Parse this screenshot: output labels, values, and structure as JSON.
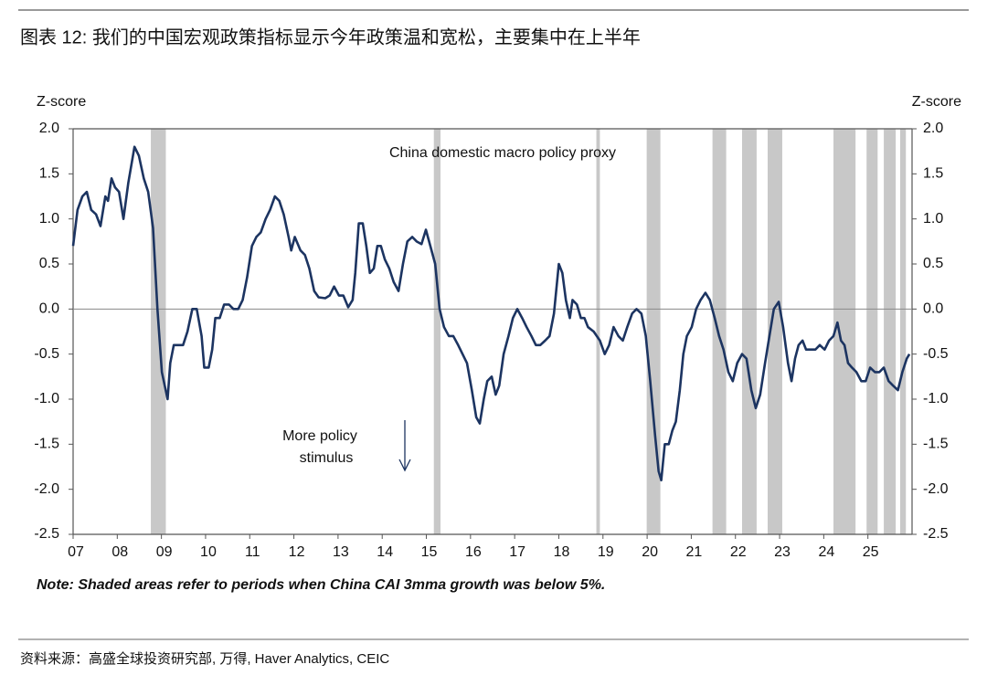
{
  "chart_data": {
    "type": "line",
    "title": "图表 12: 我们的中国宏观政策指标显示今年政策温和宽松，主要集中在上半年",
    "y_label": "Z-score",
    "y2_label": "Z-score",
    "annotation": "China domestic macro policy proxy",
    "annotation_stimulus": [
      "More policy",
      "stimulus"
    ],
    "note": "Note: Shaded areas refer to periods when China CAI 3mma growth was below 5%.",
    "source": "资料来源：高盛全球投资研究部, 万得, Haver Analytics, CEIC",
    "xlim": [
      7,
      26
    ],
    "xticks": [
      {
        "value": 7,
        "label": "07"
      },
      {
        "value": 8,
        "label": "08"
      },
      {
        "value": 9,
        "label": "09"
      },
      10,
      11,
      12,
      13,
      14,
      15,
      16,
      17,
      18,
      19,
      20,
      21,
      22,
      23,
      24,
      25
    ],
    "ylim": [
      -2.5,
      2.0
    ],
    "yticks": [
      {
        "value": -2.5,
        "label": "-2.5"
      },
      {
        "value": -2,
        "label": "-2.0"
      },
      -1.5,
      {
        "value": -1,
        "label": "-1.0"
      },
      -0.5,
      {
        "value": 0,
        "label": "0.0"
      },
      0.5,
      {
        "value": 1,
        "label": "1.0"
      },
      1.5,
      {
        "value": 2,
        "label": "2.0"
      }
    ],
    "y2lim": [
      -2.5,
      2.0
    ],
    "y2ticks": [
      {
        "value": -2.5,
        "label": "-2.5"
      },
      {
        "value": -2,
        "label": "-2.0"
      },
      -1.5,
      {
        "value": -1,
        "label": "-1.0"
      },
      -0.5,
      {
        "value": 0,
        "label": "0.0"
      },
      0.5,
      {
        "value": 1,
        "label": "1.0"
      },
      1.5,
      {
        "value": 2,
        "label": "2.0"
      }
    ],
    "shaded_color": "#c8c8c8",
    "shaded_periods": [
      [
        8.76,
        9.1
      ],
      [
        15.17,
        15.32
      ],
      [
        18.85,
        18.93
      ],
      [
        19.99,
        20.3
      ],
      [
        21.48,
        21.79
      ],
      [
        22.15,
        22.48
      ],
      [
        22.73,
        23.06
      ],
      [
        24.22,
        24.72
      ],
      [
        24.97,
        25.22
      ],
      [
        25.36,
        25.63
      ],
      [
        25.73,
        25.86
      ]
    ],
    "x": [
      7.0,
      7.1,
      7.21,
      7.31,
      7.41,
      7.52,
      7.62,
      7.73,
      7.79,
      7.87,
      7.95,
      8.04,
      8.14,
      8.25,
      8.39,
      8.49,
      8.6,
      8.7,
      8.81,
      8.91,
      9.01,
      9.14,
      9.2,
      9.28,
      9.39,
      9.49,
      9.59,
      9.7,
      9.8,
      9.91,
      9.97,
      10.07,
      10.15,
      10.22,
      10.32,
      10.42,
      10.53,
      10.63,
      10.74,
      10.84,
      10.94,
      11.05,
      11.15,
      11.25,
      11.36,
      11.46,
      11.57,
      11.67,
      11.77,
      11.88,
      11.94,
      12.02,
      12.15,
      12.25,
      12.35,
      12.46,
      12.56,
      12.71,
      12.81,
      12.91,
      13.02,
      13.12,
      13.23,
      13.33,
      13.39,
      13.47,
      13.56,
      13.64,
      13.72,
      13.81,
      13.89,
      13.97,
      14.06,
      14.16,
      14.26,
      14.37,
      14.47,
      14.57,
      14.68,
      14.78,
      14.89,
      14.99,
      15.09,
      15.2,
      15.3,
      15.4,
      15.51,
      15.61,
      15.72,
      15.82,
      15.92,
      16.03,
      16.13,
      16.21,
      16.3,
      16.38,
      16.48,
      16.57,
      16.65,
      16.75,
      16.86,
      16.96,
      17.06,
      17.17,
      17.27,
      17.38,
      17.48,
      17.58,
      17.69,
      17.79,
      17.89,
      18.0,
      18.08,
      18.16,
      18.25,
      18.31,
      18.41,
      18.5,
      18.58,
      18.66,
      18.79,
      18.93,
      19.04,
      19.14,
      19.24,
      19.35,
      19.45,
      19.55,
      19.66,
      19.76,
      19.87,
      19.97,
      20.07,
      20.18,
      20.26,
      20.32,
      20.4,
      20.49,
      20.57,
      20.65,
      20.74,
      20.82,
      20.9,
      21.01,
      21.11,
      21.21,
      21.32,
      21.42,
      21.53,
      21.63,
      21.73,
      21.84,
      21.94,
      22.04,
      22.15,
      22.25,
      22.36,
      22.46,
      22.56,
      22.67,
      22.77,
      22.87,
      22.98,
      23.08,
      23.19,
      23.27,
      23.35,
      23.43,
      23.52,
      23.6,
      23.7,
      23.81,
      23.91,
      24.02,
      24.12,
      24.22,
      24.31,
      24.39,
      24.47,
      24.55,
      24.64,
      24.74,
      24.85,
      24.95,
      25.05,
      25.16,
      25.26,
      25.36,
      25.47,
      25.57,
      25.68,
      25.78,
      25.88,
      25.94
    ],
    "series": [
      {
        "name": "China domestic macro policy proxy",
        "color": "#1c3461",
        "values": [
          0.7,
          1.1,
          1.25,
          1.3,
          1.1,
          1.05,
          0.92,
          1.25,
          1.2,
          1.45,
          1.35,
          1.3,
          1.0,
          1.4,
          1.8,
          1.7,
          1.45,
          1.3,
          0.9,
          0,
          -0.7,
          -1.0,
          -0.6,
          -0.4,
          -0.4,
          -0.4,
          -0.25,
          0,
          0,
          -0.3,
          -0.65,
          -0.65,
          -0.45,
          -0.1,
          -0.1,
          0.05,
          0.05,
          0,
          0,
          0.1,
          0.35,
          0.7,
          0.8,
          0.85,
          1.0,
          1.1,
          1.25,
          1.2,
          1.05,
          0.8,
          0.65,
          0.8,
          0.65,
          0.6,
          0.45,
          0.2,
          0.13,
          0.12,
          0.15,
          0.25,
          0.15,
          0.15,
          0.02,
          0.1,
          0.4,
          0.95,
          0.95,
          0.7,
          0.4,
          0.45,
          0.7,
          0.7,
          0.55,
          0.45,
          0.3,
          0.2,
          0.5,
          0.75,
          0.8,
          0.75,
          0.72,
          0.88,
          0.7,
          0.5,
          0,
          -0.2,
          -0.3,
          -0.3,
          -0.4,
          -0.5,
          -0.6,
          -0.9,
          -1.2,
          -1.27,
          -1.0,
          -0.8,
          -0.75,
          -0.95,
          -0.85,
          -0.5,
          -0.3,
          -0.1,
          0,
          -0.1,
          -0.2,
          -0.3,
          -0.4,
          -0.4,
          -0.35,
          -0.3,
          -0.05,
          0.5,
          0.4,
          0.1,
          -0.1,
          0.1,
          0.05,
          -0.1,
          -0.1,
          -0.2,
          -0.25,
          -0.35,
          -0.5,
          -0.4,
          -0.2,
          -0.3,
          -0.35,
          -0.2,
          -0.05,
          0,
          -0.05,
          -0.3,
          -0.8,
          -1.4,
          -1.8,
          -1.9,
          -1.5,
          -1.5,
          -1.35,
          -1.25,
          -0.9,
          -0.5,
          -0.3,
          -0.2,
          0,
          0.1,
          0.18,
          0.1,
          -0.1,
          -0.3,
          -0.45,
          -0.7,
          -0.8,
          -0.6,
          -0.5,
          -0.55,
          -0.9,
          -1.1,
          -0.95,
          -0.6,
          -0.3,
          0,
          0.08,
          -0.2,
          -0.6,
          -0.8,
          -0.55,
          -0.4,
          -0.35,
          -0.45,
          -0.45,
          -0.45,
          -0.4,
          -0.45,
          -0.35,
          -0.3,
          -0.15,
          -0.35,
          -0.4,
          -0.6,
          -0.65,
          -0.7,
          -0.8,
          -0.8,
          -0.65,
          -0.7,
          -0.7,
          -0.65,
          -0.8,
          -0.85,
          -0.9,
          -0.7,
          -0.55,
          -0.5
        ]
      }
    ]
  }
}
